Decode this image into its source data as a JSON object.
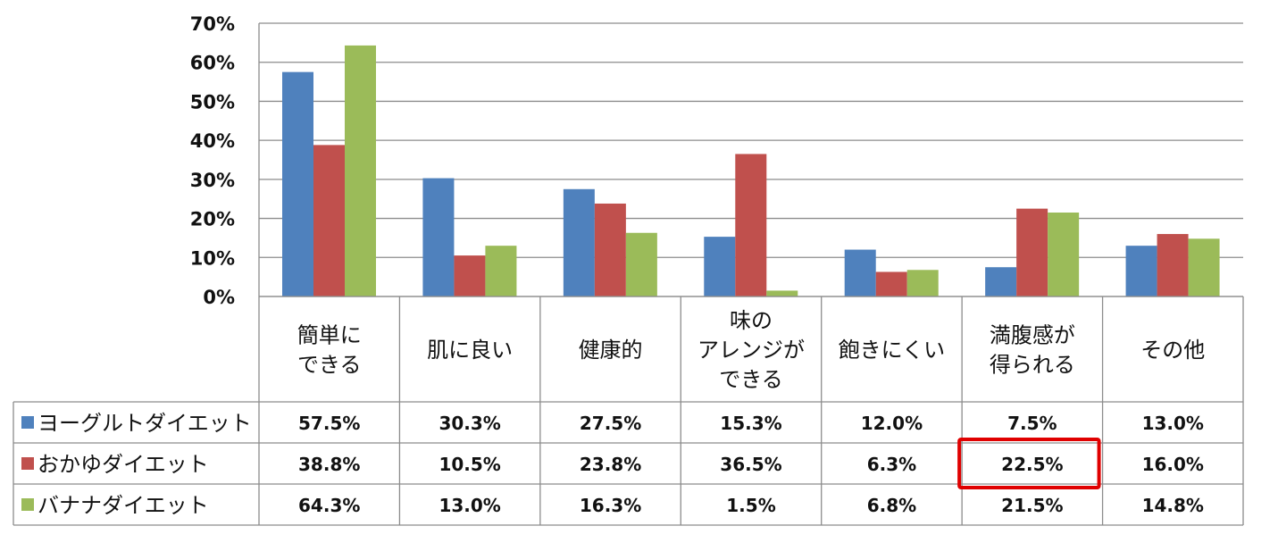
{
  "chart_data": {
    "type": "bar",
    "title": "",
    "xlabel": "",
    "ylabel": "",
    "ylim": [
      0,
      70
    ],
    "yticks": [
      "0%",
      "10%",
      "20%",
      "30%",
      "40%",
      "50%",
      "60%",
      "70%"
    ],
    "grid": true,
    "legend": "left (in data table)",
    "categories": [
      [
        "簡単に",
        "できる"
      ],
      [
        "肌に良い"
      ],
      [
        "健康的"
      ],
      [
        "味の",
        "アレンジが",
        "できる"
      ],
      [
        "飽きにくい"
      ],
      [
        "満腹感が",
        "得られる"
      ],
      [
        "その他"
      ]
    ],
    "series": [
      {
        "name": "ヨーグルトダイエット",
        "color": "#4f81bd",
        "values": [
          57.5,
          30.3,
          27.5,
          15.3,
          12.0,
          7.5,
          13.0
        ],
        "labels": [
          "57.5%",
          "30.3%",
          "27.5%",
          "15.3%",
          "12.0%",
          "7.5%",
          "13.0%"
        ]
      },
      {
        "name": "おかゆダイエット",
        "color": "#c0504d",
        "values": [
          38.8,
          10.5,
          23.8,
          36.5,
          6.3,
          22.5,
          16.0
        ],
        "labels": [
          "38.8%",
          "10.5%",
          "23.8%",
          "36.5%",
          "6.3%",
          "22.5%",
          "16.0%"
        ]
      },
      {
        "name": "バナナダイエット",
        "color": "#9bbb59",
        "values": [
          64.3,
          13.0,
          16.3,
          1.5,
          6.8,
          21.5,
          14.8
        ],
        "labels": [
          "64.3%",
          "13.0%",
          "16.3%",
          "1.5%",
          "6.8%",
          "21.5%",
          "14.8%"
        ]
      }
    ],
    "highlight": {
      "series": 1,
      "category": 5,
      "color": "#e00000"
    }
  }
}
